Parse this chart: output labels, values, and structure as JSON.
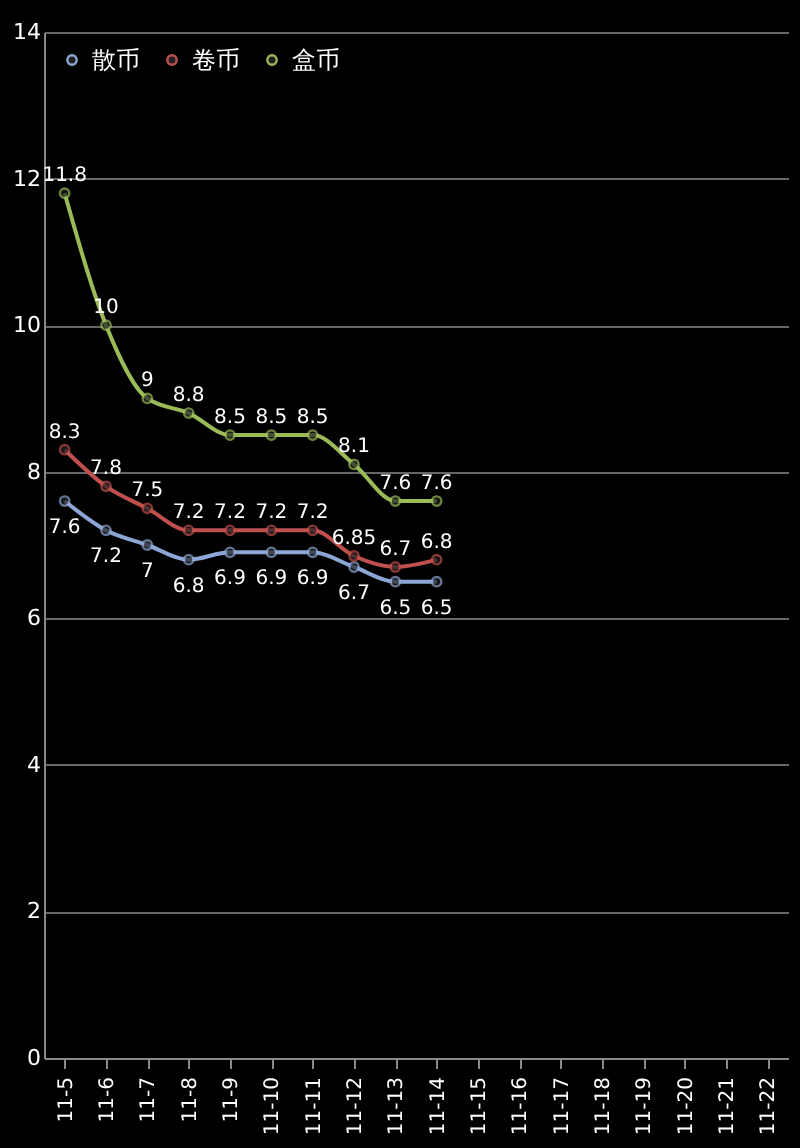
{
  "chart_data": {
    "type": "line",
    "categories": [
      "11-5",
      "11-6",
      "11-7",
      "11-8",
      "11-9",
      "11-10",
      "11-11",
      "11-12",
      "11-13",
      "11-14",
      "11-15",
      "11-16",
      "11-17",
      "11-18",
      "11-19",
      "11-20",
      "11-21",
      "11-22"
    ],
    "series": [
      {
        "name": "散币",
        "color": "#8ea6d6",
        "values": [
          7.6,
          7.2,
          7,
          6.8,
          6.9,
          6.9,
          6.9,
          6.7,
          6.5,
          6.5,
          null,
          null,
          null,
          null,
          null,
          null,
          null,
          null
        ]
      },
      {
        "name": "卷币",
        "color": "#c0504d",
        "values": [
          8.3,
          7.8,
          7.5,
          7.2,
          7.2,
          7.2,
          7.2,
          6.85,
          6.7,
          6.8,
          null,
          null,
          null,
          null,
          null,
          null,
          null,
          null
        ]
      },
      {
        "name": "盒币",
        "color": "#9bbb59",
        "values": [
          11.8,
          10,
          9,
          8.8,
          8.5,
          8.5,
          8.5,
          8.1,
          7.6,
          7.6,
          null,
          null,
          null,
          null,
          null,
          null,
          null,
          null
        ]
      }
    ],
    "ylim": [
      0,
      14
    ],
    "yticks": [
      0,
      2,
      4,
      6,
      8,
      10,
      12,
      14
    ],
    "grid": "y",
    "legend": "top left",
    "marker": "circle",
    "line_style": "solid",
    "data_labels": true
  }
}
